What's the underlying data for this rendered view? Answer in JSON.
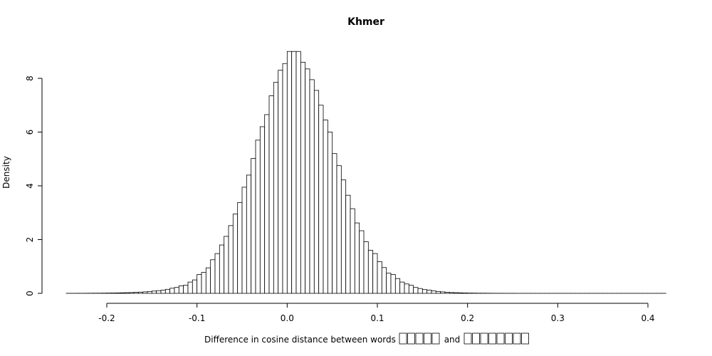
{
  "chart_data": {
    "type": "bar",
    "title": "Khmer",
    "xlabel": "Difference in cosine distance between words",
    "xlabel_joiner": "and",
    "ylabel": "Density",
    "xlim": [
      -0.245,
      0.42
    ],
    "ylim": [
      0,
      9
    ],
    "grid": false,
    "x_ticks": [
      -0.2,
      -0.1,
      0.0,
      0.1,
      0.2,
      0.3,
      0.4
    ],
    "x_tick_labels": [
      "-0.2",
      "-0.1",
      "0.0",
      "0.1",
      "0.2",
      "0.3",
      "0.4"
    ],
    "y_ticks": [
      0,
      2,
      4,
      6,
      8
    ],
    "y_tick_labels": [
      "0",
      "2",
      "4",
      "6",
      "8"
    ],
    "bin_width": 0.005,
    "bins_start": -0.245,
    "values": [
      0.002,
      0.002,
      0.003,
      0.003,
      0.004,
      0.005,
      0.006,
      0.007,
      0.009,
      0.011,
      0.013,
      0.016,
      0.02,
      0.025,
      0.03,
      0.037,
      0.045,
      0.055,
      0.07,
      0.085,
      0.1,
      0.12,
      0.15,
      0.19,
      0.22,
      0.28,
      0.3,
      0.42,
      0.5,
      0.7,
      0.78,
      0.95,
      1.25,
      1.48,
      1.8,
      2.12,
      2.52,
      2.95,
      3.38,
      3.95,
      4.4,
      5.02,
      5.7,
      6.2,
      6.65,
      7.35,
      7.85,
      8.3,
      8.55,
      9.0,
      9.0,
      9.0,
      8.6,
      8.35,
      7.95,
      7.55,
      7.0,
      6.45,
      6.0,
      5.2,
      4.75,
      4.22,
      3.65,
      3.15,
      2.62,
      2.33,
      1.92,
      1.6,
      1.48,
      1.18,
      0.96,
      0.75,
      0.7,
      0.55,
      0.42,
      0.35,
      0.3,
      0.22,
      0.18,
      0.14,
      0.12,
      0.09,
      0.07,
      0.055,
      0.04,
      0.03,
      0.025,
      0.018,
      0.014,
      0.011,
      0.009,
      0.007,
      0.006,
      0.005,
      0.004,
      0.003,
      0.003,
      0.002,
      0.002,
      0.002,
      0.001,
      0.001,
      0.001,
      0.001,
      0.001,
      0.001,
      0.001,
      0.001,
      0.001,
      0.001,
      0.001,
      0.001,
      0.001,
      0.001,
      0.001,
      0.001,
      0.001,
      0.001,
      0.001,
      0.001,
      0.001,
      0.001,
      0.001,
      0.001,
      0.001,
      0.001,
      0.001,
      0.001,
      0.001,
      0.001,
      0.001,
      0.001,
      0.001
    ]
  }
}
